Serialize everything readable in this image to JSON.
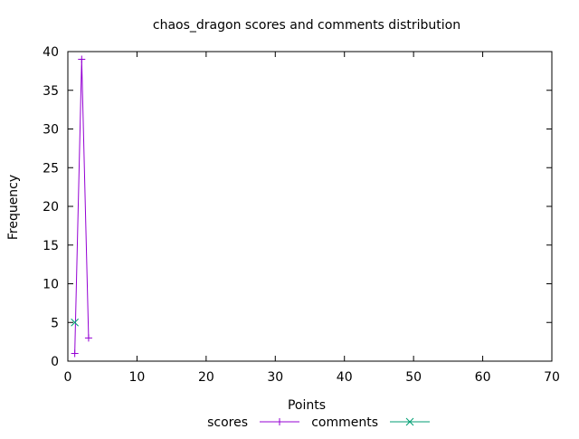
{
  "chart_data": {
    "type": "line",
    "title": "chaos_dragon scores and comments distribution",
    "xlabel": "Points",
    "ylabel": "Frequency",
    "xlim": [
      0,
      70
    ],
    "ylim": [
      0,
      40
    ],
    "x_ticks": [
      0,
      10,
      20,
      30,
      40,
      50,
      60,
      70
    ],
    "y_ticks": [
      0,
      5,
      10,
      15,
      20,
      25,
      30,
      35,
      40
    ],
    "grid": false,
    "legend_position": "bottom-center",
    "series": [
      {
        "name": "scores",
        "color": "#9400d3",
        "marker": "plus",
        "points": [
          {
            "x": 1,
            "y": 1
          },
          {
            "x": 2,
            "y": 39
          },
          {
            "x": 3,
            "y": 3
          }
        ]
      },
      {
        "name": "comments",
        "color": "#009e73",
        "marker": "cross",
        "points": [
          {
            "x": 1,
            "y": 5
          }
        ]
      }
    ]
  }
}
